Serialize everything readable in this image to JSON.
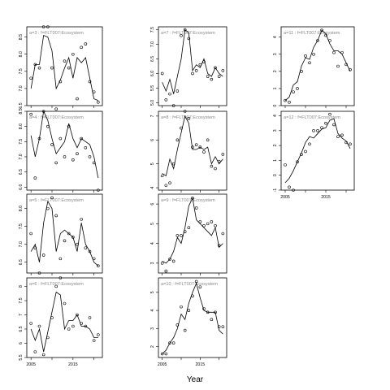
{
  "chart_data": {
    "type": "scatter",
    "xlabel": "Year",
    "x_tick_labels": [
      "2005",
      "2015"
    ],
    "panels": [
      {
        "label": "a=3 : f=FLT007:Ecosystem",
        "ylim": [
          6.5,
          8.8
        ],
        "yticks": [
          6.5,
          7.0,
          7.5,
          8.0,
          8.5
        ],
        "x": [
          2005,
          2006,
          2007,
          2008,
          2009,
          2010,
          2011,
          2012,
          2013,
          2014,
          2015,
          2016,
          2017,
          2018,
          2019,
          2020,
          2021
        ],
        "fitted": [
          7.0,
          7.7,
          7.7,
          8.55,
          8.5,
          8.1,
          7.0,
          7.25,
          7.6,
          7.9,
          7.3,
          7.9,
          7.75,
          7.9,
          7.3,
          6.7,
          6.65
        ],
        "observed": [
          7.3,
          7.7,
          7.6,
          8.8,
          8.8,
          7.6,
          6.4,
          7.2,
          7.8,
          7.6,
          8.0,
          6.7,
          8.2,
          8.3,
          7.2,
          6.9,
          6.6
        ]
      },
      {
        "label": "a=7 : f=FLT007:Ecosystem",
        "ylim": [
          4.9,
          7.6
        ],
        "yticks": [
          5.0,
          5.5,
          6.0,
          6.5,
          7.0,
          7.5
        ],
        "x": [
          2005,
          2006,
          2007,
          2008,
          2009,
          2010,
          2011,
          2012,
          2013,
          2014,
          2015,
          2016,
          2017,
          2018,
          2019,
          2020,
          2021
        ],
        "fitted": [
          5.7,
          5.4,
          5.8,
          5.3,
          5.9,
          6.5,
          7.5,
          7.4,
          6.1,
          6.3,
          6.2,
          6.5,
          6.0,
          5.9,
          6.2,
          6.0,
          5.9
        ],
        "observed": [
          6.0,
          5.1,
          5.3,
          4.9,
          5.4,
          7.3,
          7.5,
          7.2,
          6.0,
          6.1,
          6.3,
          6.4,
          5.9,
          5.8,
          6.2,
          5.9,
          6.1
        ]
      },
      {
        "label": "a=11 : f=FLT007:Ecosystem",
        "ylim": [
          0.0,
          4.6
        ],
        "yticks": [
          0,
          1,
          2,
          3,
          4
        ],
        "x": [
          2005,
          2006,
          2007,
          2008,
          2009,
          2010,
          2011,
          2012,
          2013,
          2014,
          2015,
          2016,
          2017,
          2018,
          2019,
          2020,
          2021
        ],
        "fitted": [
          0.3,
          0.5,
          1.2,
          1.4,
          2.3,
          2.8,
          2.7,
          3.4,
          3.8,
          4.4,
          4.2,
          3.6,
          3.2,
          3.2,
          3.0,
          2.5,
          2.0
        ],
        "observed": [
          0.3,
          0.2,
          0.8,
          1.0,
          2.0,
          2.9,
          2.5,
          3.0,
          3.8,
          4.4,
          4.1,
          3.8,
          3.1,
          2.3,
          3.1,
          2.4,
          2.1
        ]
      },
      {
        "label": "a=4 : f=FLT007:Ecosystem",
        "ylim": [
          5.9,
          8.5
        ],
        "yticks": [
          6.0,
          6.5,
          7.0,
          7.5,
          8.0,
          8.5
        ],
        "x": [
          2005,
          2006,
          2007,
          2008,
          2009,
          2010,
          2011,
          2012,
          2013,
          2014,
          2015,
          2016,
          2017,
          2018,
          2019,
          2020,
          2021
        ],
        "fitted": [
          7.7,
          7.0,
          7.6,
          8.5,
          8.2,
          7.6,
          7.1,
          7.3,
          7.5,
          8.1,
          7.6,
          7.3,
          7.6,
          7.5,
          7.4,
          7.0,
          6.3
        ],
        "observed": [
          8.4,
          6.3,
          7.6,
          8.5,
          8.0,
          7.4,
          6.8,
          7.6,
          7.0,
          8.0,
          6.9,
          7.1,
          7.6,
          7.3,
          7.0,
          6.8,
          5.9
        ]
      },
      {
        "label": "a=8 : f=FLT007:Ecosystem",
        "ylim": [
          3.9,
          7.2
        ],
        "yticks": [
          4.0,
          5.0,
          6.0,
          7.0
        ],
        "x": [
          2005,
          2006,
          2007,
          2008,
          2009,
          2010,
          2011,
          2012,
          2013,
          2014,
          2015,
          2016,
          2017,
          2018,
          2019,
          2020,
          2021
        ],
        "fitted": [
          4.6,
          4.5,
          5.2,
          4.8,
          5.6,
          6.3,
          7.0,
          6.7,
          5.6,
          5.6,
          5.7,
          5.6,
          5.7,
          5.0,
          5.3,
          5.0,
          5.2
        ],
        "observed": [
          4.5,
          4.1,
          4.2,
          5.0,
          6.0,
          6.5,
          7.2,
          6.9,
          5.7,
          5.8,
          5.7,
          5.5,
          6.0,
          4.9,
          4.8,
          5.1,
          5.4
        ]
      },
      {
        "label": "a=12 : f=FLT007:Ecosystem",
        "ylim": [
          -1.0,
          4.3
        ],
        "yticks": [
          -1,
          0,
          1,
          2,
          3,
          4
        ],
        "x": [
          2005,
          2006,
          2007,
          2008,
          2009,
          2010,
          2011,
          2012,
          2013,
          2014,
          2015,
          2016,
          2017,
          2018,
          2019,
          2020,
          2021
        ],
        "fitted": [
          -0.5,
          -0.2,
          0.3,
          0.9,
          1.5,
          2.2,
          2.6,
          2.5,
          2.8,
          3.1,
          3.2,
          3.7,
          3.8,
          2.8,
          2.5,
          2.3,
          1.8
        ],
        "observed": [
          0.7,
          -0.8,
          -1.0,
          0.9,
          1.4,
          1.6,
          2.1,
          3.0,
          3.0,
          3.2,
          3.5,
          4.1,
          3.4,
          2.6,
          2.7,
          2.2,
          2.1
        ]
      },
      {
        "label": "a=5 : f=FLT007:Ecosystem",
        "ylim": [
          6.2,
          8.4
        ],
        "yticks": [
          6.5,
          7.0,
          7.5,
          8.0
        ],
        "x": [
          2005,
          2006,
          2007,
          2008,
          2009,
          2010,
          2011,
          2012,
          2013,
          2014,
          2015,
          2016,
          2017,
          2018,
          2019,
          2020,
          2021
        ],
        "fitted": [
          6.8,
          7.0,
          6.5,
          7.6,
          8.2,
          8.0,
          6.8,
          7.3,
          7.4,
          7.3,
          7.2,
          6.8,
          7.6,
          7.0,
          6.8,
          6.5,
          6.4
        ],
        "observed": [
          7.3,
          6.9,
          6.2,
          6.7,
          8.0,
          8.3,
          7.8,
          6.6,
          7.1,
          7.3,
          7.2,
          7.0,
          7.7,
          6.9,
          6.8,
          6.6,
          6.4
        ]
      },
      {
        "label": "a=9 : f=FLT007:Ecosystem",
        "ylim": [
          2.5,
          6.5
        ],
        "yticks": [
          3,
          4,
          5,
          6
        ],
        "x": [
          2005,
          2006,
          2007,
          2008,
          2009,
          2010,
          2011,
          2012,
          2013,
          2014,
          2015,
          2016,
          2017,
          2018,
          2019,
          2020,
          2021
        ],
        "fitted": [
          3.1,
          3.0,
          3.2,
          3.6,
          4.3,
          4.0,
          4.8,
          5.9,
          6.3,
          5.2,
          5.0,
          4.8,
          4.6,
          4.4,
          4.8,
          3.8,
          4.0
        ],
        "observed": [
          3.0,
          2.6,
          3.2,
          3.1,
          4.4,
          4.4,
          4.6,
          4.8,
          6.3,
          5.8,
          5.1,
          4.9,
          5.0,
          5.1,
          4.9,
          3.9,
          4.5
        ]
      },
      {
        "label": "a=6 : f=FLT007:Ecosystem",
        "ylim": [
          5.5,
          8.3
        ],
        "yticks": [
          5.5,
          6.0,
          6.5,
          7.0,
          7.5,
          8.0
        ],
        "x": [
          2005,
          2006,
          2007,
          2008,
          2009,
          2010,
          2011,
          2012,
          2013,
          2014,
          2015,
          2016,
          2017,
          2018,
          2019,
          2020,
          2021
        ],
        "fitted": [
          6.5,
          6.1,
          6.5,
          5.7,
          6.4,
          7.1,
          7.8,
          7.7,
          6.5,
          6.8,
          6.8,
          7.0,
          6.6,
          6.6,
          6.5,
          6.2,
          6.2
        ],
        "observed": [
          6.7,
          5.7,
          6.6,
          5.6,
          6.2,
          6.9,
          8.0,
          8.3,
          7.4,
          6.5,
          6.6,
          7.0,
          6.7,
          6.6,
          6.9,
          6.1,
          6.3
        ]
      },
      {
        "label": "a=10 : f=FLT007:Ecosystem",
        "ylim": [
          1.4,
          5.8
        ],
        "yticks": [
          2,
          3,
          4,
          5
        ],
        "x": [
          2005,
          2006,
          2007,
          2008,
          2009,
          2010,
          2011,
          2012,
          2013,
          2014,
          2015,
          2016,
          2017,
          2018,
          2019,
          2020,
          2021
        ],
        "fitted": [
          1.6,
          1.8,
          2.2,
          2.5,
          3.0,
          3.8,
          3.5,
          4.4,
          5.0,
          5.5,
          4.7,
          4.0,
          3.9,
          3.9,
          3.9,
          2.9,
          2.7
        ],
        "observed": [
          1.6,
          1.6,
          2.2,
          2.2,
          3.2,
          4.2,
          2.9,
          4.0,
          4.8,
          5.6,
          5.3,
          4.1,
          3.9,
          3.5,
          3.9,
          3.1,
          3.1
        ]
      }
    ]
  }
}
